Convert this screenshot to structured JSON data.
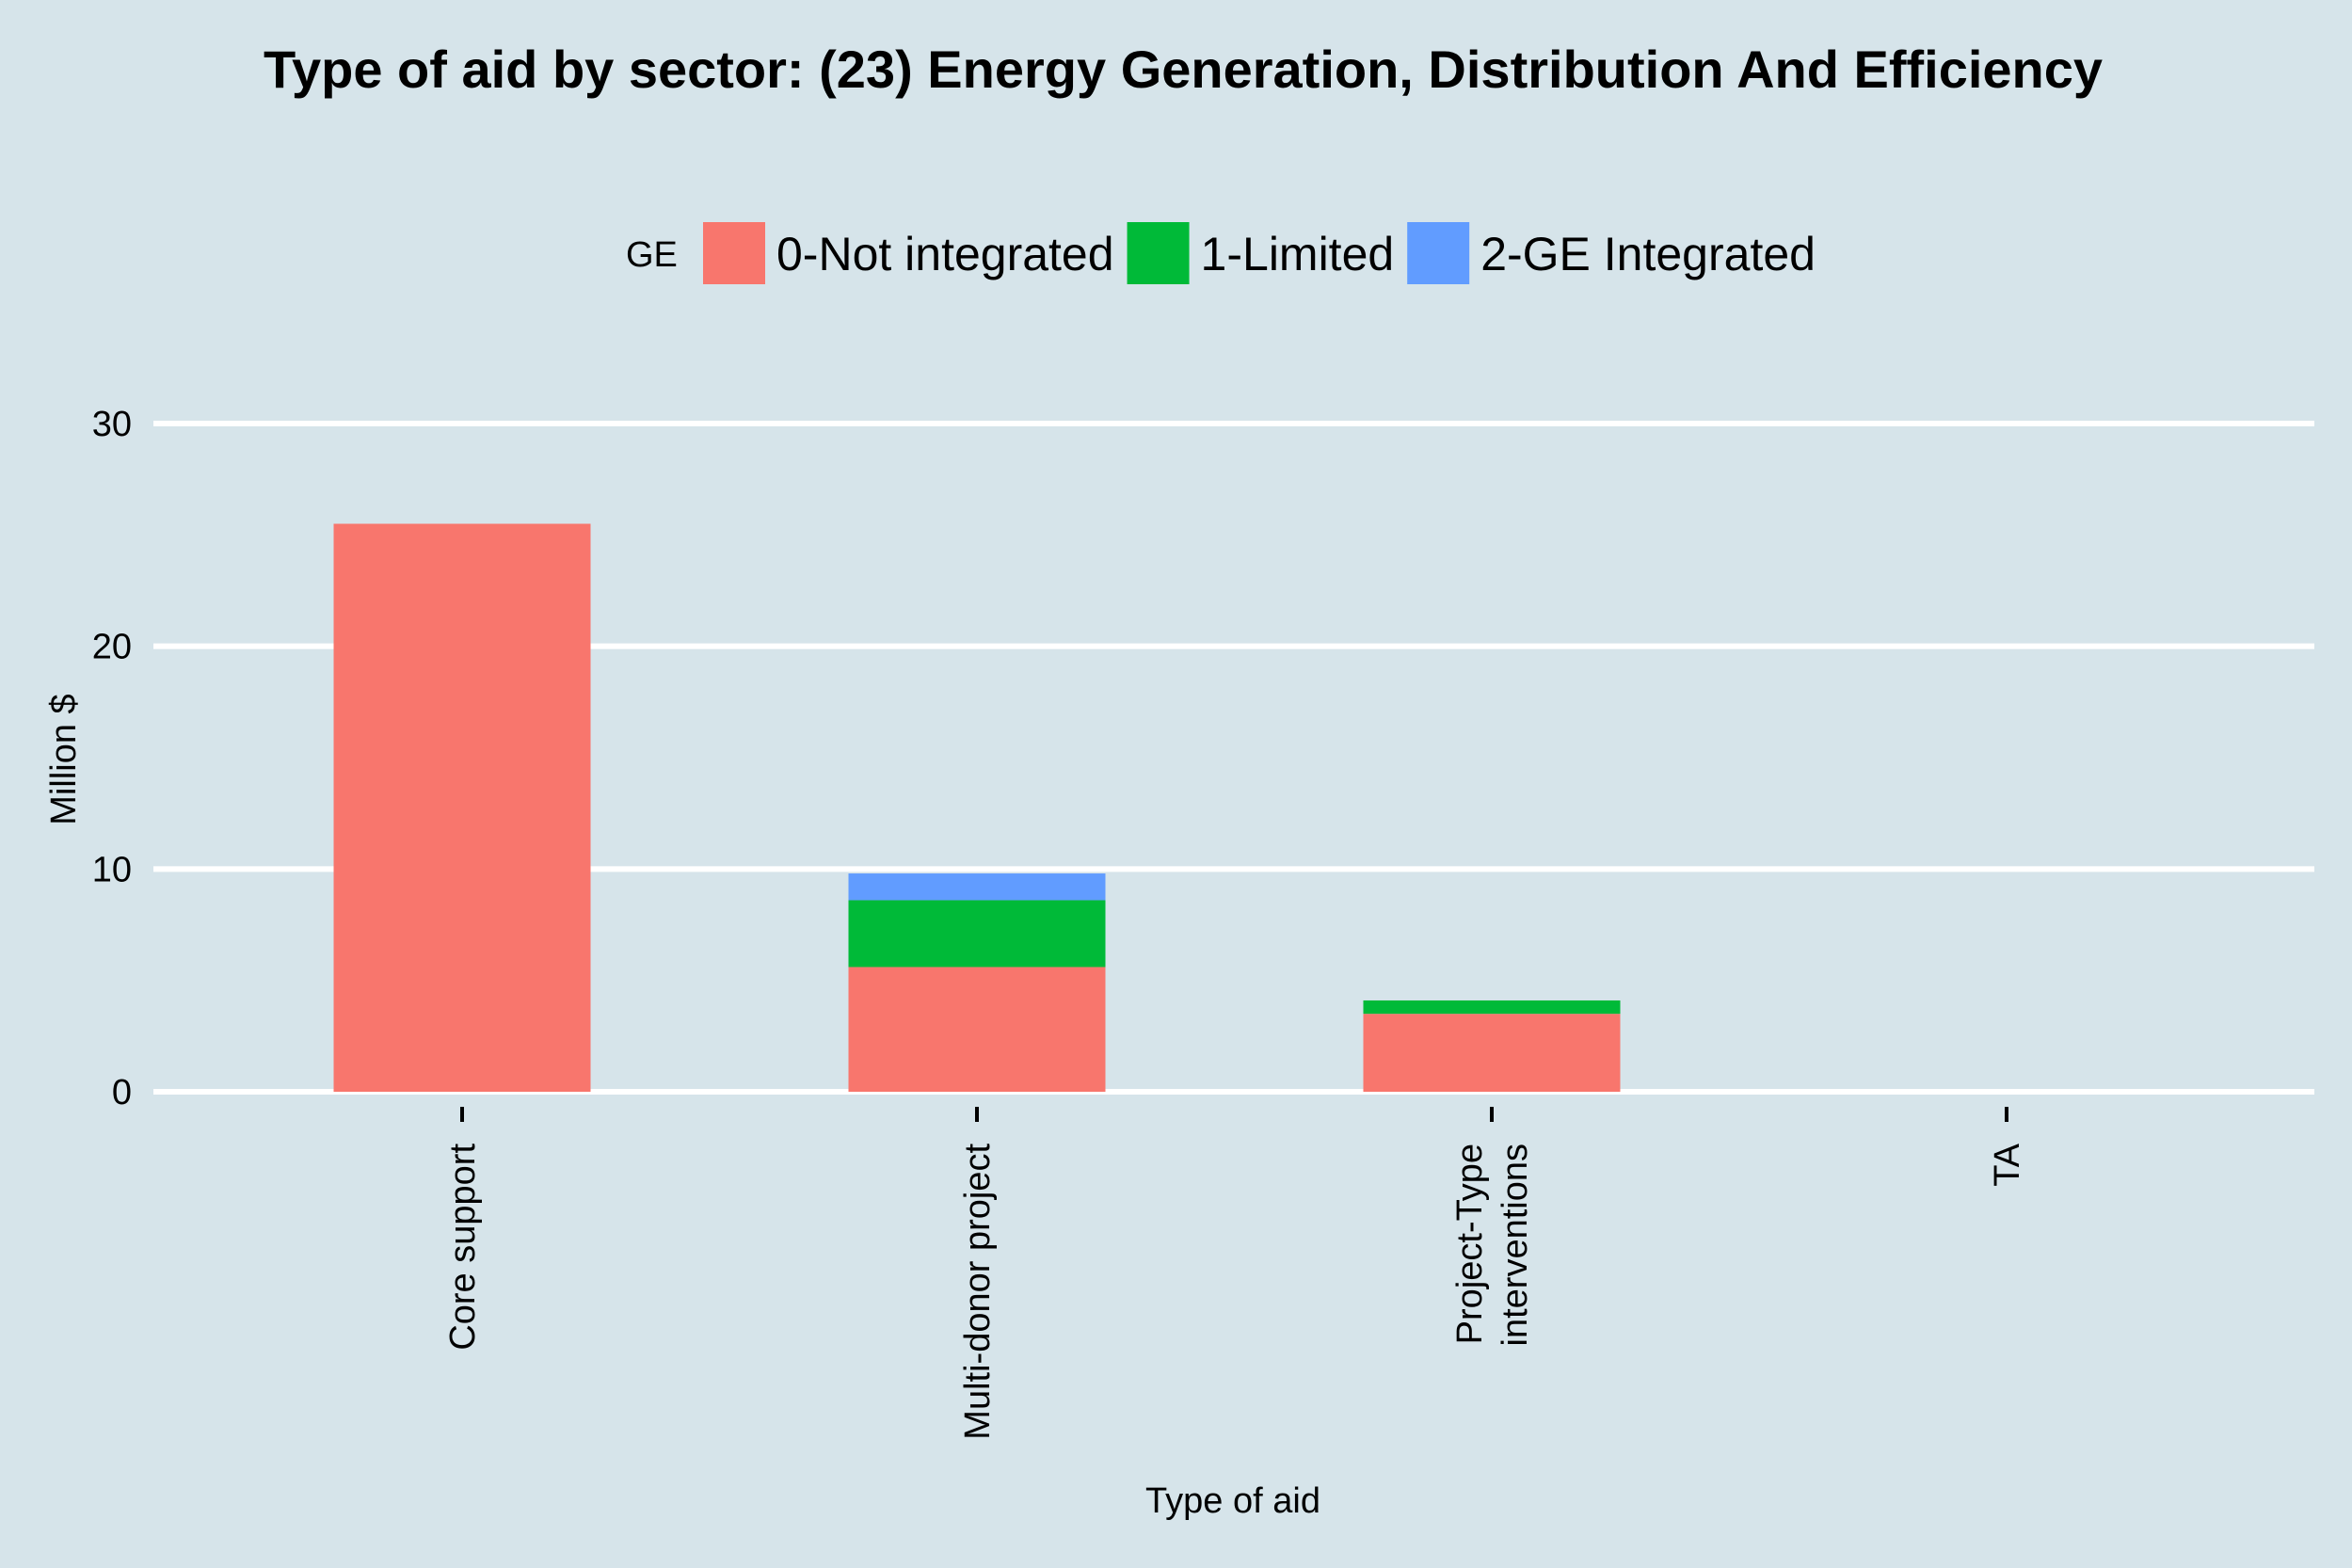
{
  "chart_data": {
    "type": "bar",
    "stacked": true,
    "title": "Type of aid by sector:  (23) Energy Generation, Distribution And Efficiency",
    "xlabel": "Type of aid",
    "ylabel": "Million $",
    "ylim": [
      0,
      30
    ],
    "yticks": [
      0,
      10,
      20,
      30
    ],
    "grid": true,
    "legend": {
      "title": "GE",
      "position": "top"
    },
    "categories": [
      [
        "Core support"
      ],
      [
        "Multi-donor project"
      ],
      [
        "Project-Type",
        "interventions"
      ],
      [
        "TA"
      ]
    ],
    "series": [
      {
        "name": "0-Not integrated",
        "color": "#f8766d",
        "values": [
          25.5,
          5.6,
          3.5,
          0
        ]
      },
      {
        "name": "1-Limited",
        "color": "#00ba38",
        "values": [
          0,
          3.0,
          0.6,
          0
        ]
      },
      {
        "name": "2-GE Integrated",
        "color": "#619cff",
        "values": [
          0,
          1.2,
          0,
          0
        ]
      }
    ]
  }
}
